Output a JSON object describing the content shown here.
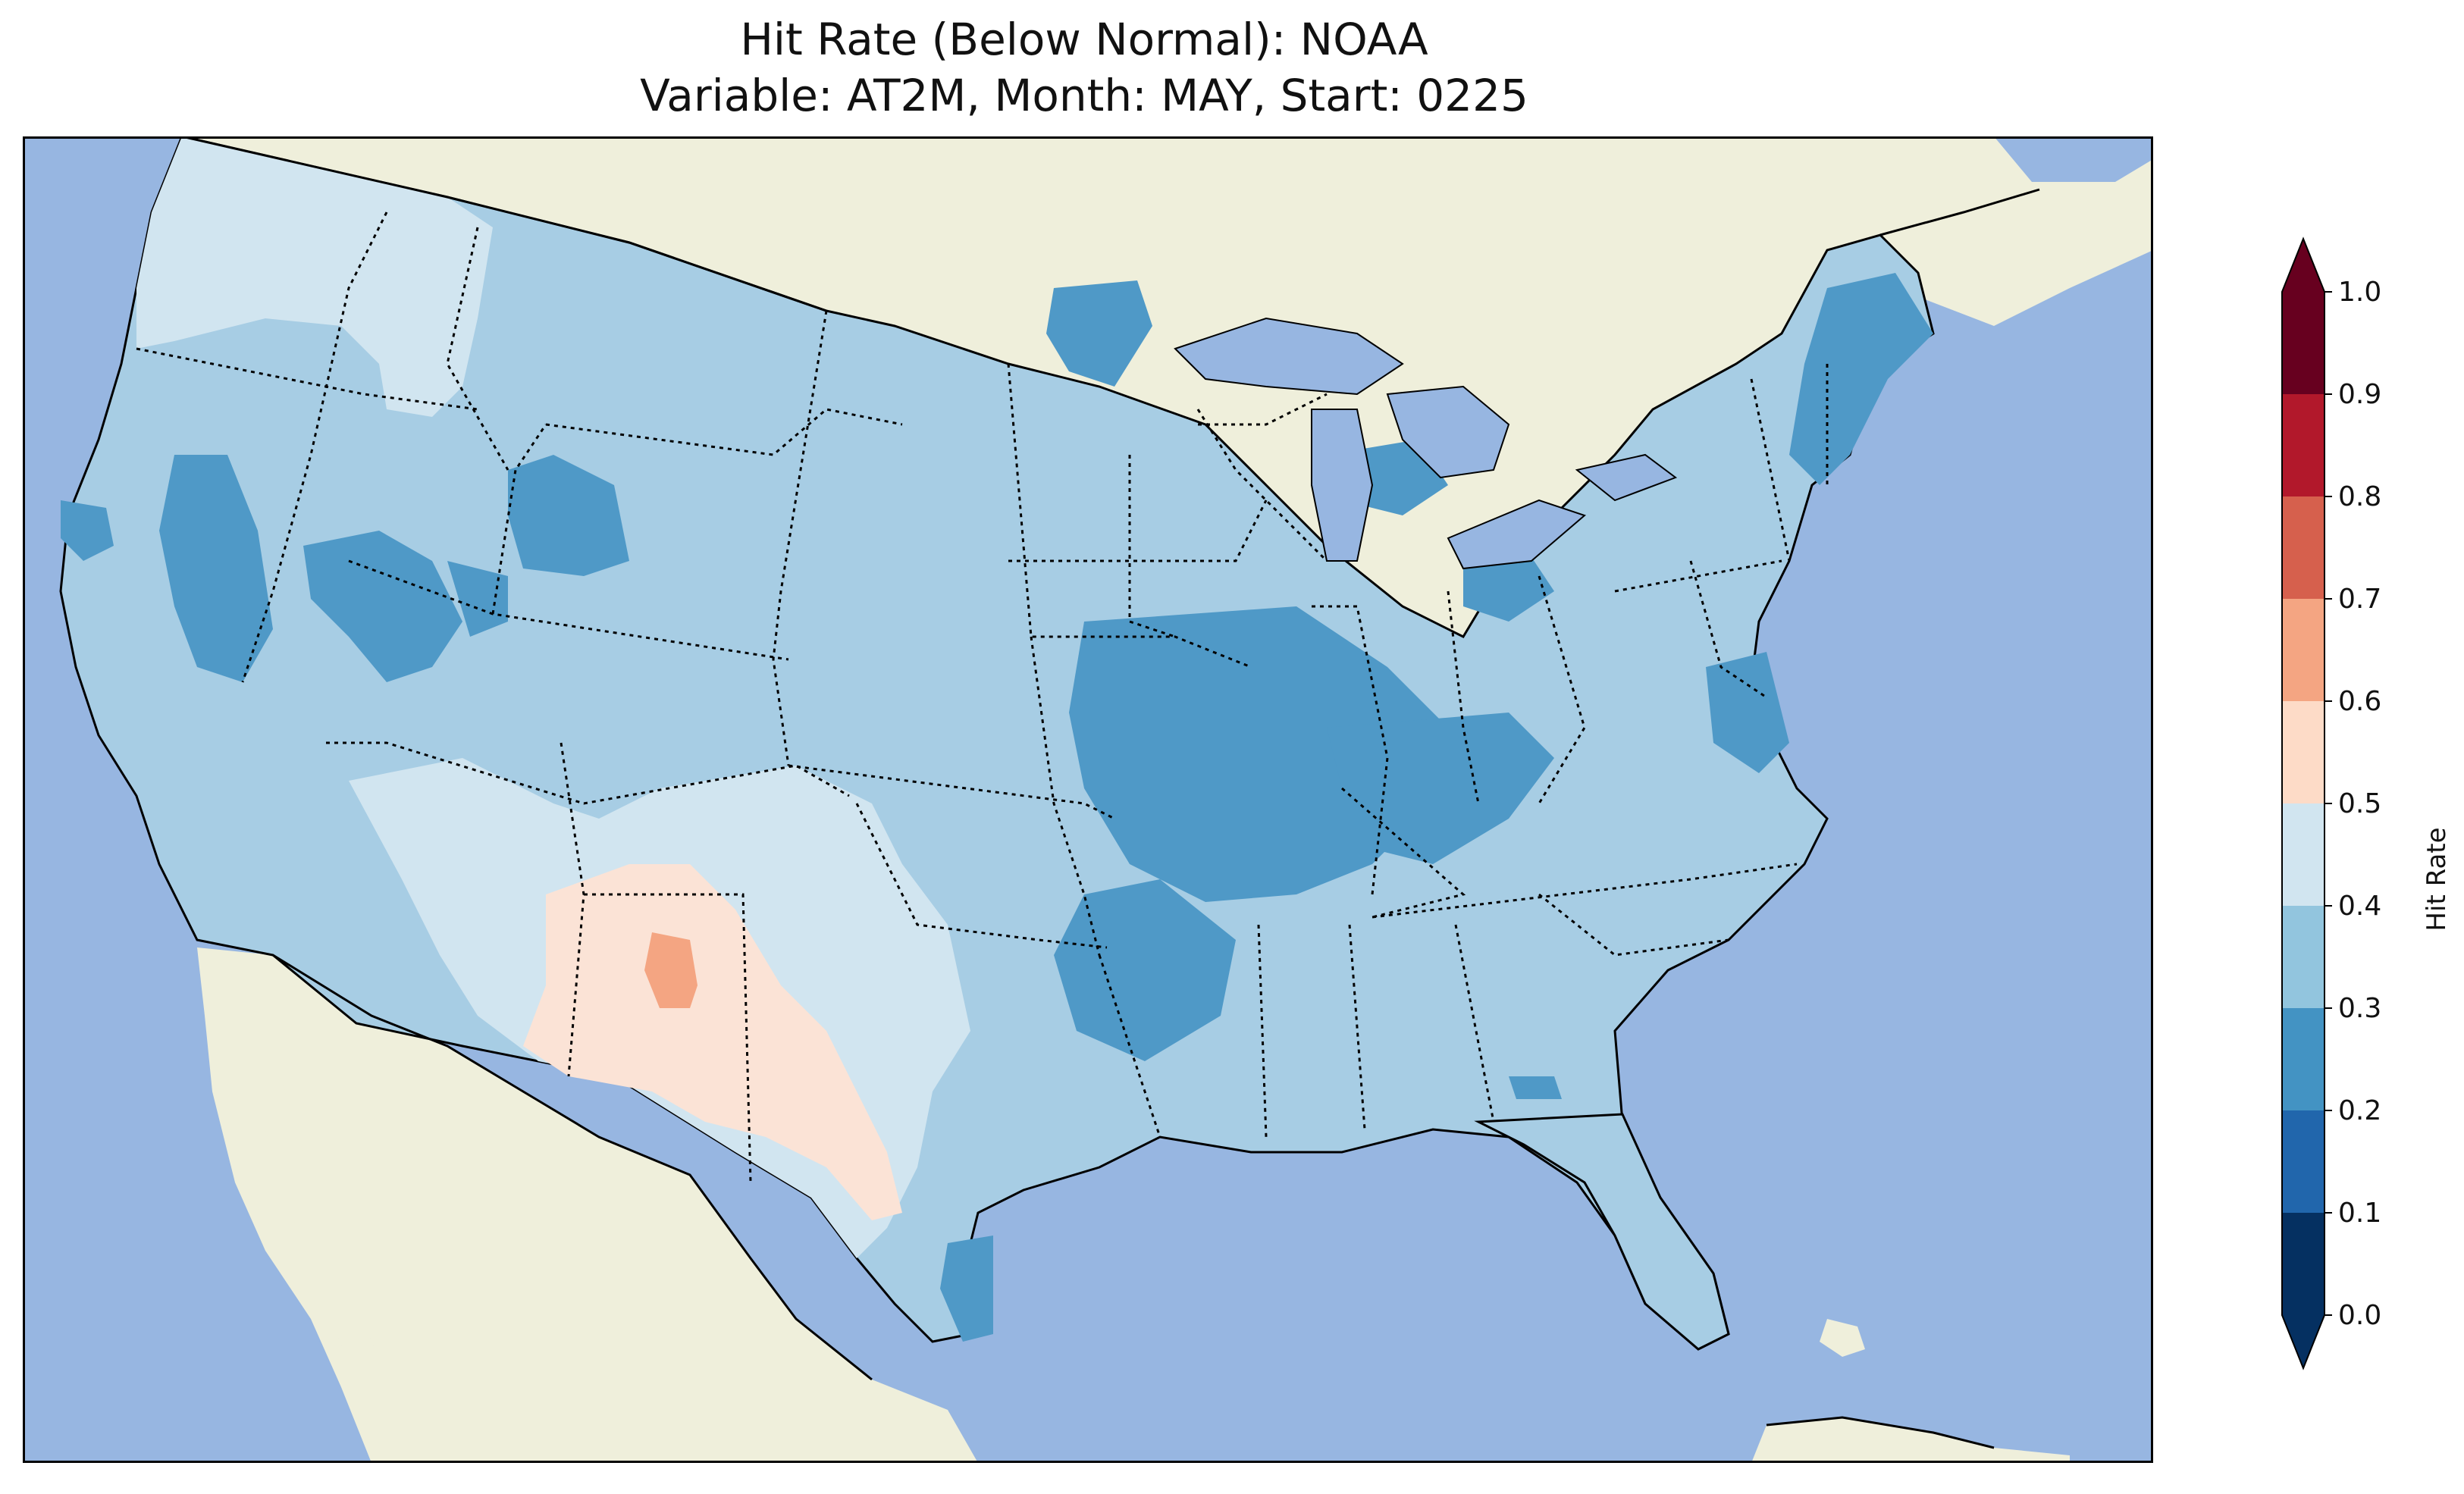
{
  "title": "Hit Rate (Below Normal): NOAA",
  "subtitle": "Variable: AT2M, Month: MAY, Start: 0225",
  "colorbar": {
    "label": "Hit Rate",
    "ticks": [
      "0.0",
      "0.1",
      "0.2",
      "0.3",
      "0.4",
      "0.5",
      "0.6",
      "0.7",
      "0.8",
      "0.9",
      "1.0"
    ],
    "colors": [
      "#053061",
      "#2166ac",
      "#4393c3",
      "#92c5de",
      "#d1e5f0",
      "#fddbc7",
      "#f4a582",
      "#d6604d",
      "#b2182b",
      "#67001f"
    ],
    "extend": "both"
  },
  "map": {
    "projection": "lambert-conformal",
    "region": "CONUS",
    "ocean_color": "#97b6e1",
    "land_color": "#efefdb",
    "lake_color": "#97b6e1",
    "regions": [
      {
        "name": "Pacific Northwest",
        "value_range": "0.4-0.5"
      },
      {
        "name": "Interior West",
        "value_range": "0.3-0.4"
      },
      {
        "name": "Southwest New Mexico",
        "value_range": "0.5-0.6"
      },
      {
        "name": "New Mexico core",
        "value_range": "0.6-0.7"
      },
      {
        "name": "Missouri Kentucky",
        "value_range": "0.2-0.3"
      },
      {
        "name": "New England",
        "value_range": "0.2-0.3"
      },
      {
        "name": "Southeast",
        "value_range": "0.3-0.4"
      }
    ]
  }
}
